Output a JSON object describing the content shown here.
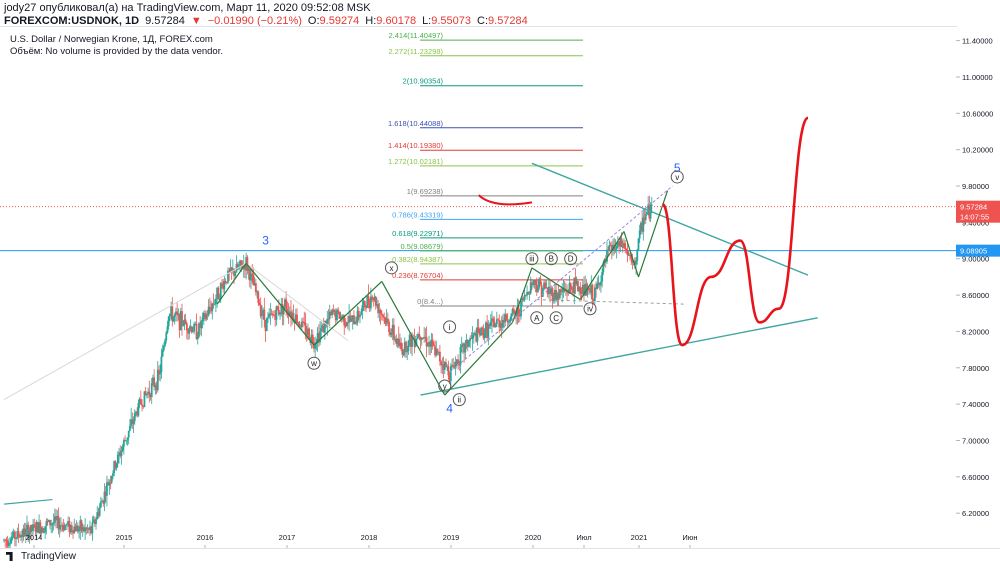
{
  "header": {
    "publisher_line": "jody27 опубликовал(а) на TradingView.com, Март 11, 2020 09:52:08 MSK",
    "symbol": "FOREXCOM:USDNOK, 1D",
    "last": "9.57284",
    "change": "−0.01990 (−0.21%)",
    "change_arrow": "▼",
    "o_label": "O:",
    "o_value": "9.59274",
    "h_label": "H:",
    "h_value": "9.60178",
    "l_label": "L:",
    "l_value": "9.55073",
    "c_label": "C:",
    "c_value": "9.57284"
  },
  "legend": {
    "title": "U.S. Dollar / Norwegian Krone, 1Д, FOREX.com",
    "volume_note": "Объём: No volume is provided by the data vendor."
  },
  "footer": {
    "brand": "TradingView"
  },
  "colors": {
    "candle_up": "#26a69a",
    "candle_down": "#ef5350",
    "forecast": "#e8141b",
    "trendline": "#3fa6a0",
    "elliott": "#2a7a3a",
    "fib_axis_tag_last": "#ef5350",
    "fib_axis_tag_level": "#2196f3",
    "axis_text": "#131722"
  },
  "chart_data": {
    "type": "candlestick",
    "title": "U.S. Dollar / Norwegian Krone, 1Д, FOREX.com",
    "xlabel": "",
    "ylabel": "",
    "ylim": [
      5.85,
      11.55
    ],
    "x_ticks": [
      "2014",
      "2015",
      "2016",
      "2017",
      "2018",
      "2019",
      "2020",
      "Июл",
      "2021",
      "Июн"
    ],
    "y_ticks": [
      "6.20000",
      "6.60000",
      "7.00000",
      "7.40000",
      "7.80000",
      "8.20000",
      "8.60000",
      "9.00000",
      "9.40000",
      "9.80000",
      "10.20000",
      "10.60000",
      "11.00000",
      "11.40000"
    ],
    "last_price": {
      "value": 9.57284,
      "label": "9.57284",
      "countdown": "14:07:55"
    },
    "marked_level": {
      "value": 9.08905,
      "label": "9.08905"
    },
    "price_series": {
      "name": "USDNOK",
      "x": [
        2013.5,
        2014.0,
        2014.4,
        2014.6,
        2014.9,
        2015.1,
        2015.2,
        2015.5,
        2015.8,
        2016.0,
        2016.2,
        2016.4,
        2016.7,
        2016.9,
        2017.1,
        2017.3,
        2017.6,
        2017.8,
        2018.0,
        2018.1,
        2018.3,
        2018.6,
        2018.8,
        2018.95,
        2019.2,
        2019.4,
        2019.6,
        2019.75,
        2019.9,
        2020.0,
        2020.1,
        2020.2
      ],
      "y": [
        5.9,
        6.1,
        6.0,
        6.6,
        7.4,
        7.7,
        8.4,
        8.2,
        8.8,
        8.95,
        8.3,
        8.5,
        8.1,
        8.4,
        8.3,
        8.6,
        8.0,
        8.2,
        7.9,
        7.75,
        8.1,
        8.3,
        8.4,
        8.75,
        8.6,
        8.7,
        8.6,
        9.1,
        9.15,
        8.9,
        9.45,
        9.57
      ]
    },
    "forecast_path": {
      "name": "forecast",
      "x": [
        2020.3,
        2020.5,
        2020.8,
        2021.1,
        2021.3,
        2021.5,
        2021.8
      ],
      "y": [
        9.6,
        8.05,
        8.8,
        9.2,
        8.3,
        8.45,
        10.55
      ]
    },
    "fib_levels": [
      {
        "label": "2.414(11.40497)",
        "value": 11.40497,
        "color": "#4caf50"
      },
      {
        "label": "2.272(11.23298)",
        "value": 11.23298,
        "color": "#8bc34a"
      },
      {
        "label": "2(10.90354)",
        "value": 10.90354,
        "color": "#089981"
      },
      {
        "label": "1.618(10.44088)",
        "value": 10.44088,
        "color": "#3f51b5"
      },
      {
        "label": "1.414(10.19380)",
        "value": 10.1938,
        "color": "#e53935"
      },
      {
        "label": "1.272(10.02181)",
        "value": 10.02181,
        "color": "#8bc34a"
      },
      {
        "label": "1(9.69238)",
        "value": 9.69238,
        "color": "#808080"
      },
      {
        "label": "0.786(9.43319)",
        "value": 9.43319,
        "color": "#42a5f5"
      },
      {
        "label": "0.618(9.22971)",
        "value": 9.22971,
        "color": "#089981"
      },
      {
        "label": "0.5(9.08679)",
        "value": 9.08679,
        "color": "#4caf50"
      },
      {
        "label": "0.382(8.94387)",
        "value": 8.94387,
        "color": "#8bc34a"
      },
      {
        "label": "0.236(8.76704)",
        "value": 8.76704,
        "color": "#e53935"
      },
      {
        "label": "0(8.4...)",
        "value": 8.48,
        "color": "#808080"
      }
    ],
    "wave_labels": [
      "3",
      "4",
      "5",
      "w",
      "x",
      "y",
      "i",
      "ii",
      "iii",
      "iv",
      "v",
      "A",
      "B",
      "C",
      "D"
    ]
  }
}
